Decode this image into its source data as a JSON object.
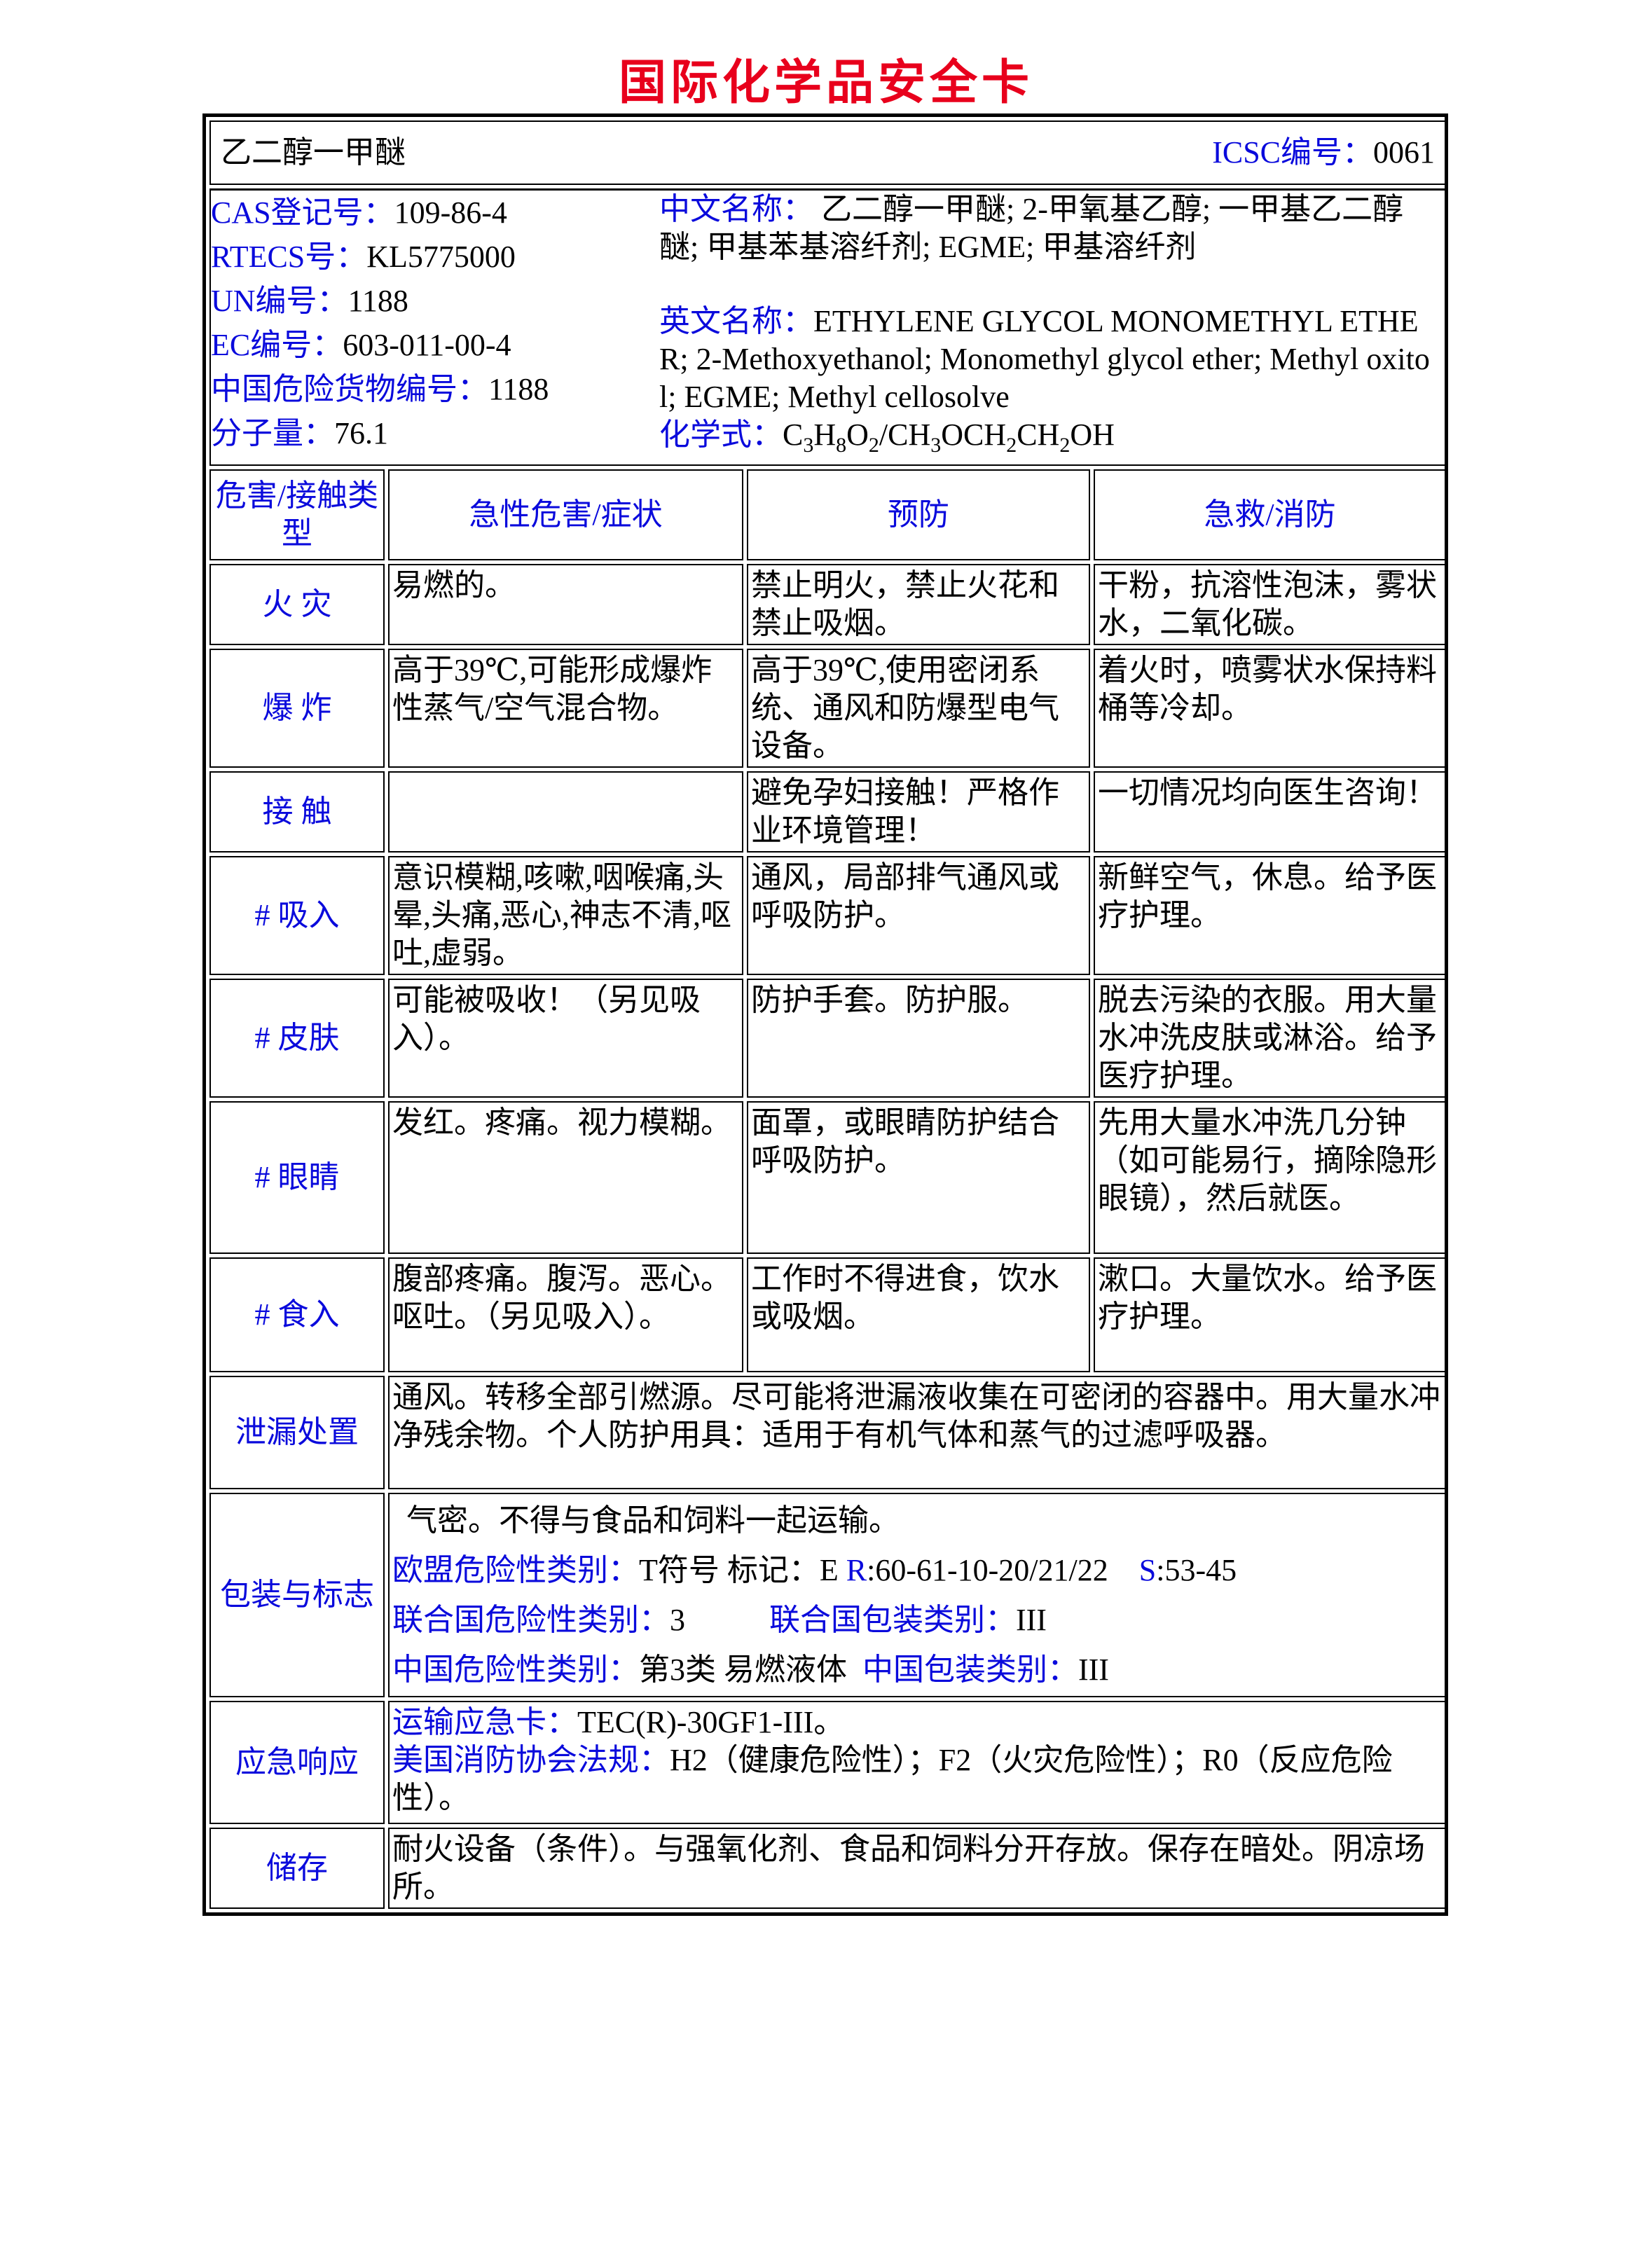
{
  "title": "国际化学品安全卡",
  "header": {
    "name": "乙二醇一甲醚",
    "icsc_label": "ICSC编号：",
    "icsc_value": "0061"
  },
  "ids": [
    {
      "label": "CAS登记号：",
      "value": "109-86-4"
    },
    {
      "label": "RTECS号：",
      "value": "KL5775000"
    },
    {
      "label": "UN编号：",
      "value": "1188"
    },
    {
      "label": "EC编号：",
      "value": "603-011-00-4"
    },
    {
      "label": "中国危险货物编号：",
      "value": "1188"
    },
    {
      "label": "分子量：",
      "value": "76.1"
    }
  ],
  "names": {
    "cn_label": "中文名称：",
    "cn_value": "乙二醇一甲醚; 2-甲氧基乙醇; 一甲基乙二醇醚; 甲基苯基溶纤剂; EGME; 甲基溶纤剂",
    "en_label": "英文名称：",
    "en_value": "ETHYLENE GLYCOL MONOMETHYL ETHER; 2-Methoxyethanol; Monomethyl glycol ether; Methyl oxitol; EGME; Methyl cellosolve",
    "formula_label": "化学式：",
    "formula": {
      "p1": "C",
      "s1": "3",
      "p2": "H",
      "s2": "8",
      "p3": "O",
      "s3": "2",
      "p4": "/CH",
      "s4": "3",
      "p5": "OCH",
      "s5": "2",
      "p6": "CH",
      "s6": "2",
      "p7": "OH"
    }
  },
  "columns": [
    "危害/接触类型",
    "急性危害/症状",
    "预防",
    "急救/消防"
  ],
  "rows": [
    {
      "type": "火 灾",
      "symptoms": "易燃的。",
      "prevention": "禁止明火，禁止火花和禁止吸烟。",
      "first_aid": "干粉，抗溶性泡沫，雾状水，二氧化碳。"
    },
    {
      "type": "爆 炸",
      "symptoms": "高于39℃,可能形成爆炸性蒸气/空气混合物。",
      "prevention": "高于39℃,使用密闭系统、通风和防爆型电气设备。",
      "first_aid": "着火时，喷雾状水保持料桶等冷却。"
    },
    {
      "type": "接 触",
      "symptoms": "",
      "prevention": "避免孕妇接触！严格作业环境管理！",
      "first_aid": "一切情况均向医生咨询！"
    },
    {
      "type": "# 吸入",
      "symptoms": "意识模糊,咳嗽,咽喉痛,头晕,头痛,恶心,神志不清,呕吐,虚弱。",
      "prevention": "通风，局部排气通风或呼吸防护。",
      "first_aid": "新鲜空气，休息。给予医疗护理。"
    },
    {
      "type": "# 皮肤",
      "symptoms": "可能被吸收！（另见吸入）。",
      "prevention": "防护手套。防护服。",
      "first_aid": "脱去污染的衣服。用大量水冲洗皮肤或淋浴。给予医疗护理。"
    },
    {
      "type": "# 眼睛",
      "symptoms": "发红。疼痛。视力模糊。",
      "prevention": "面罩，或眼睛防护结合呼吸防护。",
      "first_aid": "先用大量水冲洗几分钟（如可能易行，摘除隐形眼镜），然后就医。"
    },
    {
      "type": "# 食入",
      "symptoms": "腹部疼痛。腹泻。恶心。呕吐。（另见吸入）。",
      "prevention": "工作时不得进食，饮水或吸烟。",
      "first_aid": "漱口。大量饮水。给予医疗护理。"
    }
  ],
  "spill": {
    "label": "泄漏处置",
    "text": "通风。转移全部引燃源。尽可能将泄漏液收集在可密闭的容器中。用大量水冲净残余物。个人防护用具：适用于有机气体和蒸气的过滤呼吸器。"
  },
  "packaging": {
    "label": "包装与标志",
    "line1": "气密。不得与食品和饲料一起运输。",
    "eu_label": "欧盟危险性类别：",
    "eu_value": "T符号 标记：E ",
    "r_label": "R",
    "r_value": ":60-61-10-20/21/22",
    "s_label": "S",
    "s_value": ":53-45",
    "un_label": "联合国危险性类别：",
    "un_value": "3",
    "unpack_label": "联合国包装类别：",
    "unpack_value": "III",
    "cn_label": "中国危险性类别：",
    "cn_value": "第3类 易燃液体",
    "cnpack_label": "中国包装类别：",
    "cnpack_value": "III"
  },
  "emergency": {
    "label": "应急响应",
    "card_label": "运输应急卡：",
    "card_value": "TEC(R)-30GF1-III。",
    "nfpa_label": "美国消防协会法规：",
    "nfpa_value": "H2（健康危险性）；F2（火灾危险性）；R0（反应危险性）。"
  },
  "storage": {
    "label": "储存",
    "text": "耐火设备（条件）。与强氧化剂、食品和饲料分开存放。保存在暗处。阴凉场所。"
  }
}
